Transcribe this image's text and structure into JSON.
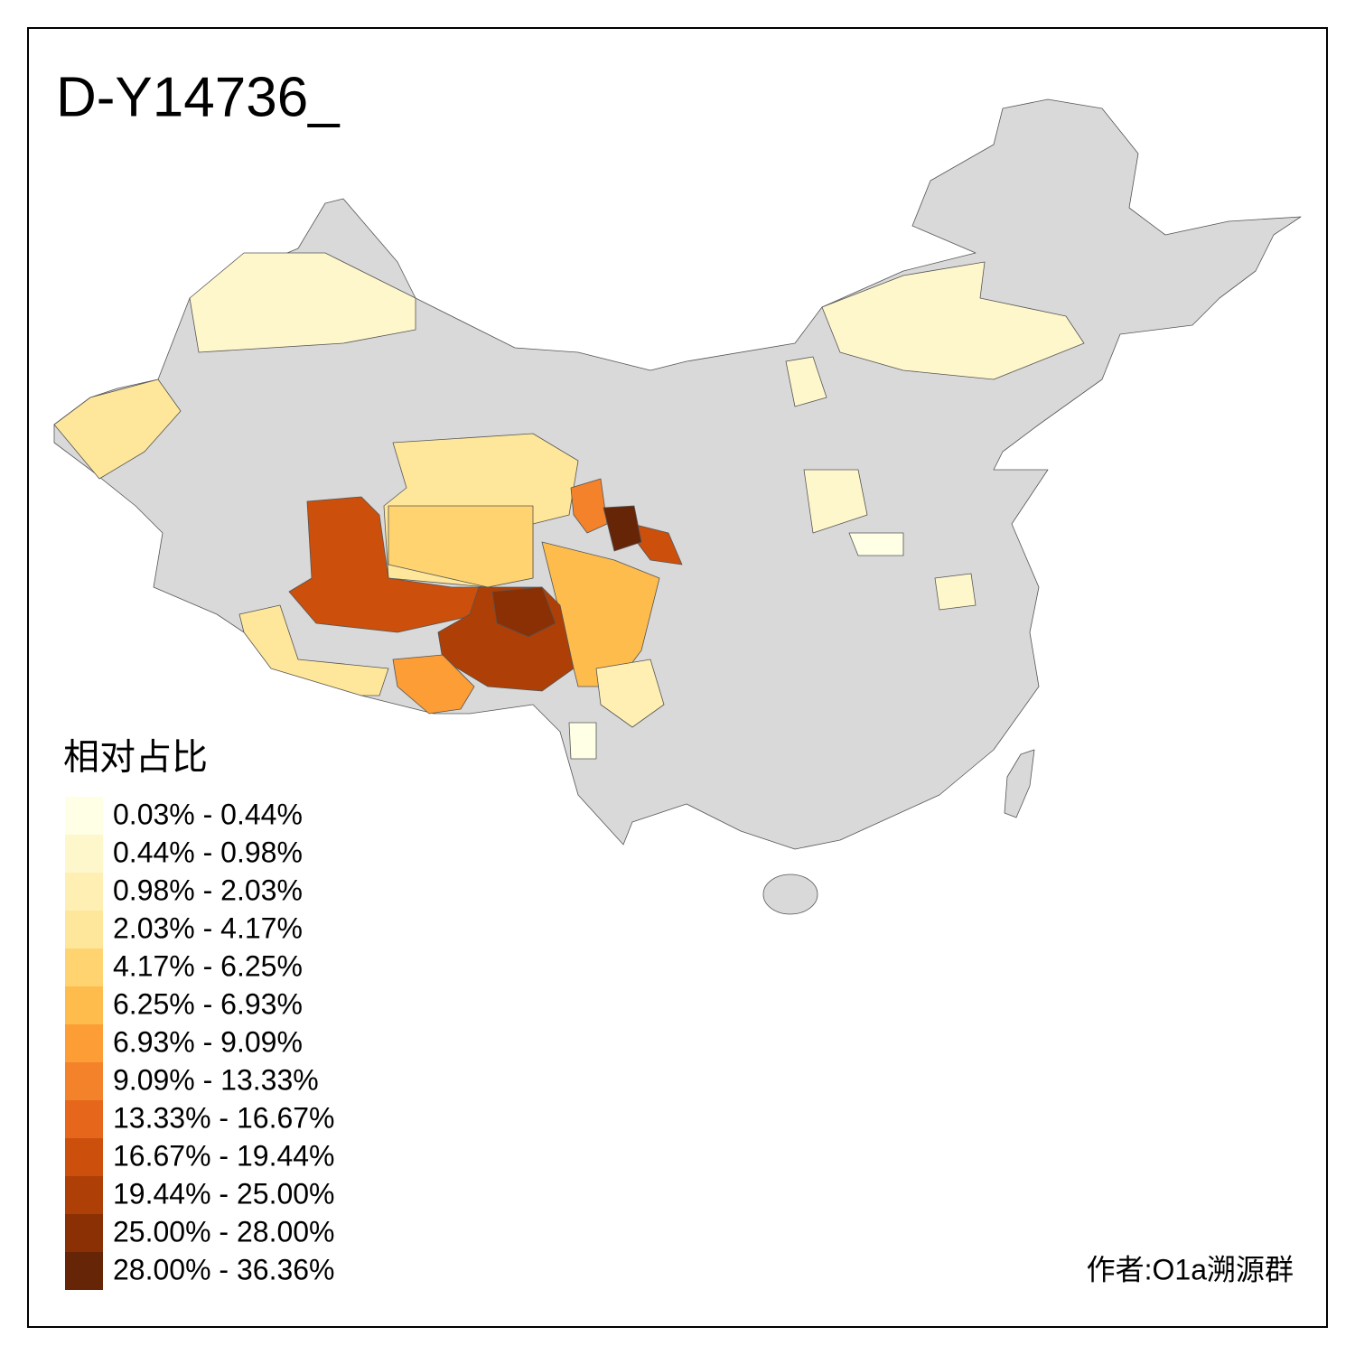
{
  "title": "D-Y14736_",
  "legend": {
    "title": "相对占比",
    "items": [
      {
        "label": "0.03% - 0.44%",
        "color": "#ffffe5"
      },
      {
        "label": "0.44% - 0.98%",
        "color": "#fff7cc"
      },
      {
        "label": "0.98% - 2.03%",
        "color": "#ffefb3"
      },
      {
        "label": "2.03% - 4.17%",
        "color": "#fee79a"
      },
      {
        "label": "4.17% - 6.25%",
        "color": "#fed370"
      },
      {
        "label": "6.25% - 6.93%",
        "color": "#febc4c"
      },
      {
        "label": "6.93% - 9.09%",
        "color": "#fc9d35"
      },
      {
        "label": "9.09% - 13.33%",
        "color": "#f4822a"
      },
      {
        "label": "13.33% - 16.67%",
        "color": "#e6661b"
      },
      {
        "label": "16.67% - 19.44%",
        "color": "#cc4f0c"
      },
      {
        "label": "19.44% - 25.00%",
        "color": "#ae3f06"
      },
      {
        "label": "25.00% - 28.00%",
        "color": "#8a3004"
      },
      {
        "label": "28.00% - 36.36%",
        "color": "#662506"
      }
    ]
  },
  "author": "作者:O1a溯源群"
}
